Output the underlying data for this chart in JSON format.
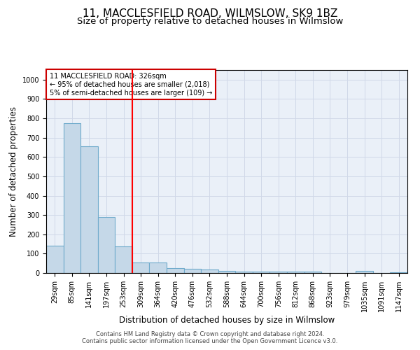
{
  "title": "11, MACCLESFIELD ROAD, WILMSLOW, SK9 1BZ",
  "subtitle": "Size of property relative to detached houses in Wilmslow",
  "xlabel": "Distribution of detached houses by size in Wilmslow",
  "ylabel": "Number of detached properties",
  "bar_color": "#c5d8e8",
  "bar_edge_color": "#6eaacb",
  "bar_edge_width": 0.8,
  "categories": [
    "29sqm",
    "85sqm",
    "141sqm",
    "197sqm",
    "253sqm",
    "309sqm",
    "364sqm",
    "420sqm",
    "476sqm",
    "532sqm",
    "588sqm",
    "644sqm",
    "700sqm",
    "756sqm",
    "812sqm",
    "868sqm",
    "923sqm",
    "979sqm",
    "1035sqm",
    "1091sqm",
    "1147sqm"
  ],
  "values": [
    140,
    775,
    655,
    290,
    138,
    55,
    55,
    27,
    20,
    18,
    12,
    7,
    8,
    7,
    8,
    7,
    0,
    0,
    10,
    0,
    2
  ],
  "ylim": [
    0,
    1050
  ],
  "yticks": [
    0,
    100,
    200,
    300,
    400,
    500,
    600,
    700,
    800,
    900,
    1000
  ],
  "red_line_index": 5,
  "annotation_text": "11 MACCLESFIELD ROAD: 326sqm\n← 95% of detached houses are smaller (2,018)\n5% of semi-detached houses are larger (109) →",
  "annotation_box_color": "#ffffff",
  "annotation_box_edge_color": "#cc0000",
  "footer_text": "Contains HM Land Registry data © Crown copyright and database right 2024.\nContains public sector information licensed under the Open Government Licence v3.0.",
  "grid_color": "#d0d8e8",
  "background_color": "#eaf0f8",
  "title_fontsize": 11,
  "subtitle_fontsize": 9.5,
  "tick_fontsize": 7,
  "xlabel_fontsize": 8.5,
  "ylabel_fontsize": 8.5,
  "footer_fontsize": 6
}
